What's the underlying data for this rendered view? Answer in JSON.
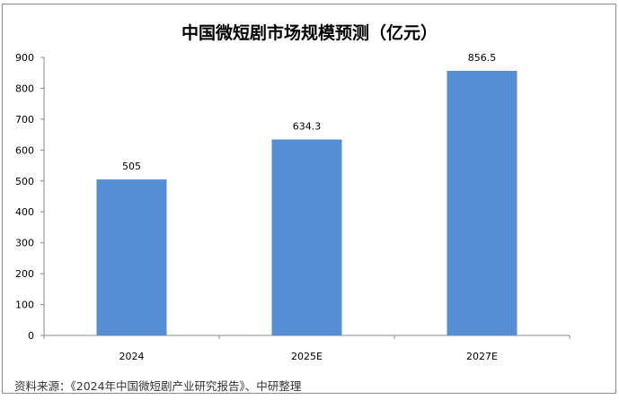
{
  "chart_data": {
    "type": "bar",
    "title": "中国微短剧市场规模预测（亿元）",
    "categories": [
      "2024",
      "2025E",
      "2027E"
    ],
    "values": [
      505,
      634.3,
      856.5
    ],
    "data_labels": [
      "505",
      "634.3",
      "856.5"
    ],
    "ylim": [
      0,
      900
    ],
    "yticks": [
      "0",
      "100",
      "200",
      "300",
      "400",
      "500",
      "600",
      "700",
      "800",
      "900"
    ],
    "xlabel": "",
    "ylabel": "",
    "grid": false,
    "bar_color": "#558ed5"
  },
  "source": "资料来源：《2024年中国微短剧产业研究报告》、中研整理"
}
